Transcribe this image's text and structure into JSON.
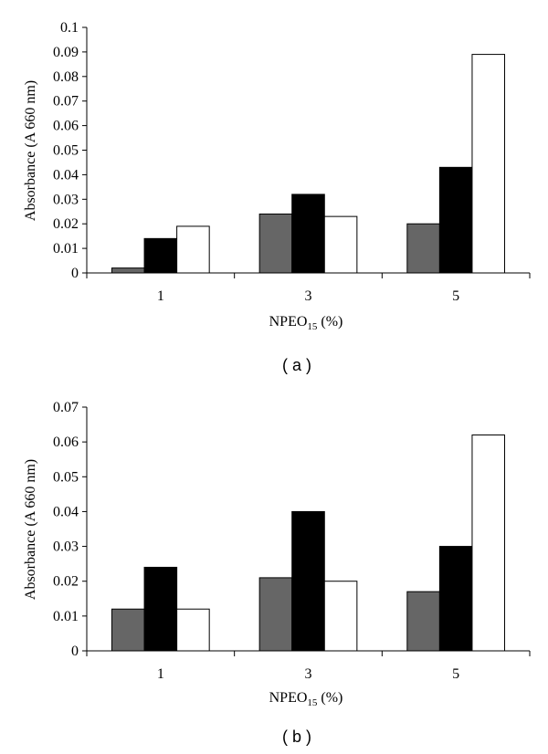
{
  "chart_data": [
    {
      "type": "bar",
      "panel_label": "( a )",
      "categories": [
        "1",
        "3",
        "5"
      ],
      "xlabel_main": "NPEO",
      "xlabel_sub": "15",
      "xlabel_suffix": " (%)",
      "ylabel": "Absorbance (A 660 nm)",
      "ylim": [
        0,
        0.1
      ],
      "yticks": [
        "0",
        "0.01",
        "0.02",
        "0.03",
        "0.04",
        "0.05",
        "0.06",
        "0.07",
        "0.08",
        "0.09",
        "0.1"
      ],
      "grid": false,
      "legend": "none",
      "series": [
        {
          "color": "#666666",
          "values": [
            0.002,
            0.024,
            0.02
          ]
        },
        {
          "color": "#000000",
          "values": [
            0.014,
            0.032,
            0.043
          ]
        },
        {
          "color": "#ffffff",
          "values": [
            0.019,
            0.023,
            0.089
          ]
        }
      ]
    },
    {
      "type": "bar",
      "panel_label": "( b )",
      "categories": [
        "1",
        "3",
        "5"
      ],
      "xlabel_main": "NPEO",
      "xlabel_sub": "15",
      "xlabel_suffix": " (%)",
      "ylabel": "Absorbance (A 660 nm)",
      "ylim": [
        0,
        0.07
      ],
      "yticks": [
        "0",
        "0.01",
        "0.02",
        "0.03",
        "0.04",
        "0.05",
        "0.06",
        "0.07"
      ],
      "grid": false,
      "legend": "none",
      "series": [
        {
          "color": "#666666",
          "values": [
            0.012,
            0.021,
            0.017
          ]
        },
        {
          "color": "#000000",
          "values": [
            0.024,
            0.04,
            0.03
          ]
        },
        {
          "color": "#ffffff",
          "values": [
            0.012,
            0.02,
            0.062
          ]
        }
      ]
    }
  ]
}
